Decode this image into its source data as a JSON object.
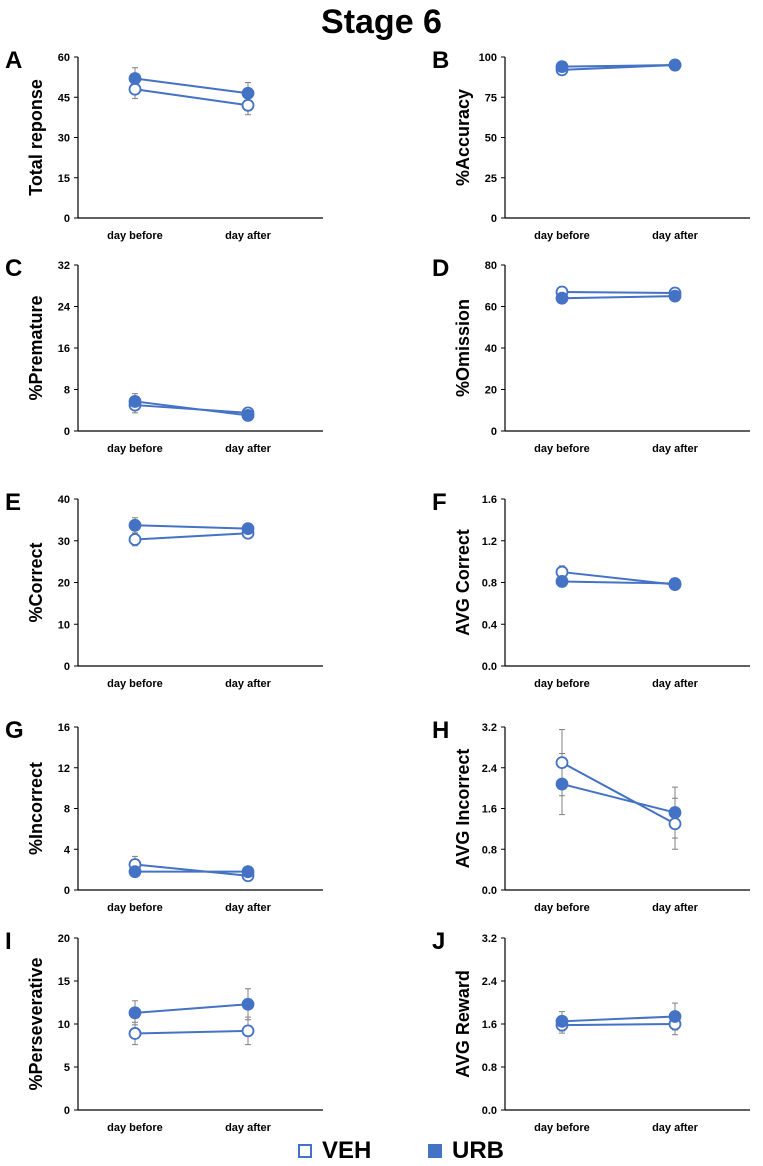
{
  "title": "Stage 6",
  "colors": {
    "veh": "#4472c4",
    "urb": "#4472c4",
    "error": "#808080"
  },
  "legend": [
    {
      "name": "VEH",
      "marker": "hollow-square"
    },
    {
      "name": "URB",
      "marker": "filled-square"
    }
  ],
  "chart_data": [
    {
      "panel": "A",
      "type": "line",
      "ylabel": "Total reponse",
      "categories": [
        "day before",
        "day after"
      ],
      "ylim": [
        0,
        60
      ],
      "yticks": [
        0,
        15,
        30,
        45,
        60
      ],
      "series": [
        {
          "name": "VEH",
          "values": [
            48,
            42
          ],
          "errors": [
            3.5,
            3.5
          ]
        },
        {
          "name": "URB",
          "values": [
            52,
            46.5
          ],
          "errors": [
            4,
            4
          ]
        }
      ]
    },
    {
      "panel": "B",
      "type": "line",
      "ylabel": "%Accuracy",
      "categories": [
        "day before",
        "day after"
      ],
      "ylim": [
        0,
        100
      ],
      "yticks": [
        0,
        25,
        50,
        75,
        100
      ],
      "series": [
        {
          "name": "VEH",
          "values": [
            92,
            95
          ],
          "errors": [
            1.5,
            1
          ]
        },
        {
          "name": "URB",
          "values": [
            94,
            95
          ],
          "errors": [
            1,
            1
          ]
        }
      ]
    },
    {
      "panel": "C",
      "type": "line",
      "ylabel": "%Premature",
      "categories": [
        "day before",
        "day after"
      ],
      "ylim": [
        0,
        32
      ],
      "yticks": [
        0,
        8,
        16,
        24,
        32
      ],
      "series": [
        {
          "name": "VEH",
          "values": [
            5,
            3.5
          ],
          "errors": [
            1.5,
            1
          ]
        },
        {
          "name": "URB",
          "values": [
            5.7,
            3
          ],
          "errors": [
            1.5,
            0.8
          ]
        }
      ]
    },
    {
      "panel": "D",
      "type": "line",
      "ylabel": "%Omission",
      "categories": [
        "day before",
        "day after"
      ],
      "ylim": [
        0,
        80
      ],
      "yticks": [
        0,
        20,
        40,
        60,
        80
      ],
      "series": [
        {
          "name": "VEH",
          "values": [
            67,
            66.5
          ],
          "errors": [
            2.5,
            2.5
          ]
        },
        {
          "name": "URB",
          "values": [
            64,
            65
          ],
          "errors": [
            2.5,
            2.5
          ]
        }
      ]
    },
    {
      "panel": "E",
      "type": "line",
      "ylabel": "%Correct",
      "categories": [
        "day before",
        "day after"
      ],
      "ylim": [
        0,
        40
      ],
      "yticks": [
        0,
        10,
        20,
        30,
        40
      ],
      "series": [
        {
          "name": "VEH",
          "values": [
            30.3,
            31.8
          ],
          "errors": [
            1.5,
            1.2
          ]
        },
        {
          "name": "URB",
          "values": [
            33.7,
            32.9
          ],
          "errors": [
            1.8,
            1.2
          ]
        }
      ]
    },
    {
      "panel": "F",
      "type": "line",
      "ylabel": "AVG Correct",
      "categories": [
        "day before",
        "day after"
      ],
      "ylim": [
        0,
        1.6
      ],
      "yticks": [
        "0.0",
        "0.4",
        "0.8",
        "1.2",
        "1.6"
      ],
      "series": [
        {
          "name": "VEH",
          "values": [
            0.9,
            0.78
          ],
          "errors": [
            0.06,
            0.03
          ]
        },
        {
          "name": "URB",
          "values": [
            0.81,
            0.79
          ],
          "errors": [
            0.05,
            0.03
          ]
        }
      ]
    },
    {
      "panel": "G",
      "type": "line",
      "ylabel": "%Incorrect",
      "categories": [
        "day before",
        "day after"
      ],
      "ylim": [
        0,
        16
      ],
      "yticks": [
        0,
        4,
        8,
        12,
        16
      ],
      "series": [
        {
          "name": "VEH",
          "values": [
            2.5,
            1.4
          ],
          "errors": [
            0.8,
            0.4
          ]
        },
        {
          "name": "URB",
          "values": [
            1.8,
            1.8
          ],
          "errors": [
            0.5,
            0.5
          ]
        }
      ]
    },
    {
      "panel": "H",
      "type": "line",
      "ylabel": "AVG  Incorrect",
      "categories": [
        "day before",
        "day after"
      ],
      "ylim": [
        0,
        3.2
      ],
      "yticks": [
        "0.0",
        "0.8",
        "1.6",
        "2.4",
        "3.2"
      ],
      "series": [
        {
          "name": "VEH",
          "values": [
            2.5,
            1.3
          ],
          "errors": [
            0.65,
            0.5
          ]
        },
        {
          "name": "URB",
          "values": [
            2.08,
            1.52
          ],
          "errors": [
            0.6,
            0.5
          ]
        }
      ]
    },
    {
      "panel": "I",
      "type": "line",
      "ylabel": "%Perseverative",
      "categories": [
        "day before",
        "day after"
      ],
      "ylim": [
        0,
        20
      ],
      "yticks": [
        0,
        5,
        10,
        15,
        20
      ],
      "series": [
        {
          "name": "VEH",
          "values": [
            8.9,
            9.2
          ],
          "errors": [
            1.3,
            1.6
          ]
        },
        {
          "name": "URB",
          "values": [
            11.3,
            12.3
          ],
          "errors": [
            1.4,
            1.8
          ]
        }
      ]
    },
    {
      "panel": "J",
      "type": "line",
      "ylabel": "AVG  Reward",
      "categories": [
        "day before",
        "day after"
      ],
      "ylim": [
        0,
        3.2
      ],
      "yticks": [
        "0.0",
        "0.8",
        "1.6",
        "2.4",
        "3.2"
      ],
      "series": [
        {
          "name": "VEH",
          "values": [
            1.58,
            1.6
          ],
          "errors": [
            0.15,
            0.2
          ]
        },
        {
          "name": "URB",
          "values": [
            1.65,
            1.74
          ],
          "errors": [
            0.18,
            0.25
          ]
        }
      ]
    }
  ]
}
